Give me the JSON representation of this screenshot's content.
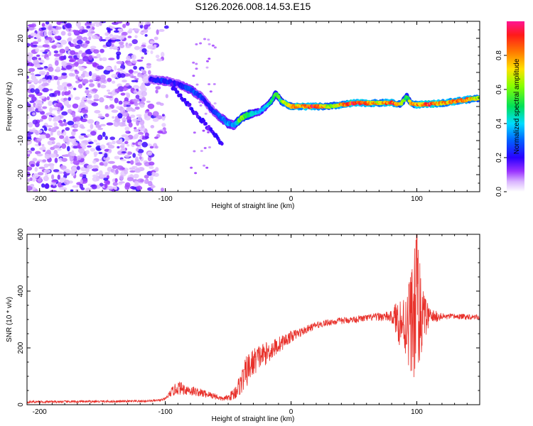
{
  "figure_title": "S126.2026.008.14.53.E15",
  "colors": {
    "snr_line": "#e8302a",
    "axis": "#000000",
    "colormap": [
      "#ffffff",
      "#d9b3ff",
      "#7f00ff",
      "#0000ff",
      "#00c8ff",
      "#00e05a",
      "#c8ff00",
      "#ff8c00",
      "#ff1a1a",
      "#ff1493"
    ]
  },
  "chart_data": [
    {
      "type": "heatmap",
      "xlabel": "Height of straight line (km)",
      "ylabel": "Frequency (Hz)",
      "xlim": [
        -210,
        150
      ],
      "ylim": [
        -25,
        25
      ],
      "xticks": [
        -200,
        -100,
        0,
        100
      ],
      "yticks": [
        -20,
        -10,
        0,
        10,
        20
      ],
      "colorbar": {
        "label": "Normalized spectral amplitude",
        "range": [
          0.0,
          1.0
        ],
        "ticks": [
          0.0,
          0.2,
          0.4,
          0.6,
          0.8
        ]
      },
      "ridge": {
        "x": [
          -112,
          -100,
          -90,
          -80,
          -72,
          -65,
          -60,
          -55,
          -50,
          -45,
          -40,
          -35,
          -30,
          -25,
          -20,
          -15,
          -12,
          -8,
          -5,
          0,
          10,
          20,
          30,
          40,
          50,
          60,
          70,
          80,
          85,
          88,
          92,
          95,
          100,
          110,
          120,
          130,
          140,
          150
        ],
        "freq": [
          8,
          7.5,
          6.5,
          5,
          3,
          0,
          -2,
          -3.5,
          -5,
          -5.5,
          -3.5,
          -2.5,
          -2,
          -1.5,
          0,
          2,
          4,
          1.5,
          1,
          0,
          0,
          0,
          0,
          0.5,
          1,
          1,
          1,
          1.2,
          0.5,
          1,
          3,
          1,
          0.5,
          0.7,
          1,
          1.5,
          2,
          2.5
        ],
        "amplitude": [
          0.2,
          0.25,
          0.2,
          0.3,
          0.25,
          0.22,
          0.25,
          0.3,
          0.35,
          0.3,
          0.6,
          0.55,
          0.4,
          0.35,
          0.4,
          0.5,
          0.55,
          0.5,
          0.75,
          0.7,
          0.85,
          0.9,
          0.6,
          0.75,
          0.9,
          0.85,
          0.7,
          0.9,
          0.75,
          0.65,
          0.5,
          0.7,
          0.8,
          0.9,
          0.75,
          0.85,
          0.8,
          0.6
        ]
      }
    },
    {
      "type": "line",
      "xlabel": "Height of straight line (km)",
      "ylabel": "SNR (10 * v/v)",
      "xlim": [
        -210,
        150
      ],
      "ylim": [
        0,
        600
      ],
      "xticks": [
        -200,
        -100,
        0,
        100
      ],
      "yticks": [
        0,
        200,
        400,
        600
      ],
      "series": [
        {
          "name": "SNR",
          "x": [
            -210,
            -120,
            -105,
            -100,
            -95,
            -90,
            -85,
            -80,
            -75,
            -70,
            -65,
            -60,
            -55,
            -50,
            -45,
            -40,
            -35,
            -30,
            -25,
            -20,
            -15,
            -10,
            -5,
            0,
            10,
            20,
            30,
            40,
            50,
            60,
            70,
            80,
            85,
            90,
            95,
            100,
            105,
            110,
            120,
            130,
            140,
            150
          ],
          "y": [
            10,
            12,
            15,
            20,
            45,
            60,
            55,
            50,
            45,
            40,
            35,
            30,
            20,
            25,
            40,
            75,
            120,
            150,
            170,
            180,
            195,
            210,
            225,
            240,
            260,
            280,
            290,
            295,
            300,
            305,
            310,
            310,
            300,
            280,
            300,
            320,
            310,
            310,
            310,
            310,
            310,
            310
          ],
          "noise": [
            4,
            4,
            4,
            5,
            15,
            25,
            20,
            20,
            15,
            15,
            12,
            12,
            8,
            10,
            25,
            40,
            60,
            50,
            45,
            40,
            35,
            30,
            25,
            20,
            15,
            12,
            12,
            12,
            12,
            12,
            15,
            20,
            80,
            110,
            180,
            280,
            100,
            30,
            12,
            10,
            10,
            10
          ],
          "peak": {
            "x": 100,
            "y": 610
          }
        }
      ]
    }
  ]
}
